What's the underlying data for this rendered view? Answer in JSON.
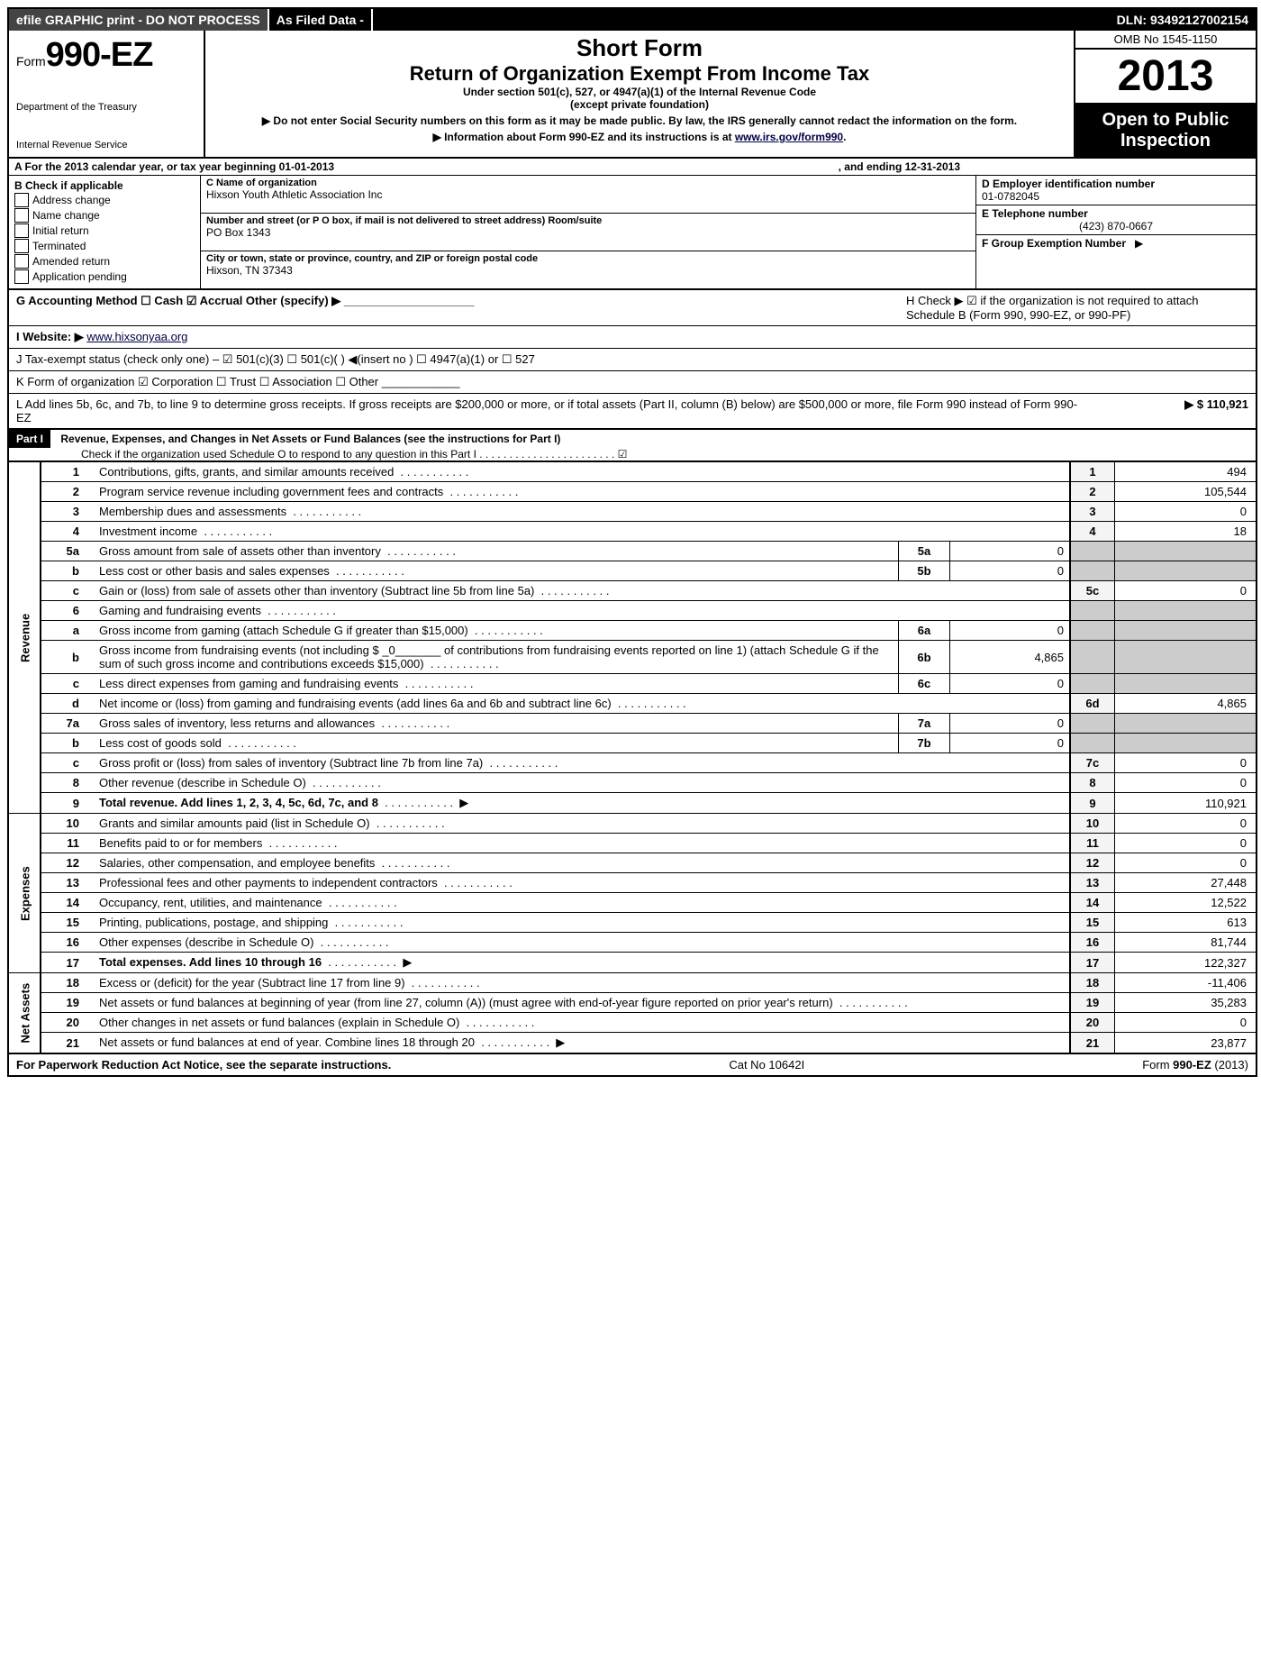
{
  "topbar": {
    "left": "efile GRAPHIC print - DO NOT PROCESS",
    "mid": "As Filed Data -",
    "right": "DLN: 93492127002154"
  },
  "header": {
    "form_prefix": "Form",
    "form_no": "990-EZ",
    "dept1": "Department of the Treasury",
    "dept2": "Internal Revenue Service",
    "short": "Short Form",
    "title": "Return of Organization Exempt From Income Tax",
    "sub1": "Under section 501(c), 527, or 4947(a)(1) of the Internal Revenue Code",
    "sub2": "(except private foundation)",
    "note1": "▶ Do not enter Social Security numbers on this form as it may be made public. By law, the IRS generally cannot redact the information on the form.",
    "note2": "▶ Information about Form 990-EZ and its instructions is at ",
    "note2_link": "www.irs.gov/form990",
    "omb": "OMB No 1545-1150",
    "year": "2013",
    "open1": "Open to Public",
    "open2": "Inspection"
  },
  "A": {
    "pre": "A  For the 2013 calendar year, or tax year beginning 01-01-2013",
    "post": ", and ending 12-31-2013"
  },
  "B": {
    "title": "B  Check if applicable",
    "items": [
      "Address change",
      "Name change",
      "Initial return",
      "Terminated",
      "Amended return",
      "Application pending"
    ]
  },
  "C": {
    "lbl": "C Name of organization",
    "name": "Hixson Youth Athletic Association Inc",
    "addr_lbl": "Number and street (or P O box, if mail is not delivered to street address) Room/suite",
    "addr": "PO Box 1343",
    "city_lbl": "City or town, state or province, country, and ZIP or foreign postal code",
    "city": "Hixson, TN  37343"
  },
  "D": {
    "lbl": "D Employer identification number",
    "val": "01-0782045"
  },
  "E": {
    "lbl": "E Telephone number",
    "val": "(423) 870-0667"
  },
  "F": {
    "lbl": "F Group Exemption Number",
    "arrow": "▶"
  },
  "G": {
    "text": "G Accounting Method     ☐ Cash   ☑ Accrual   Other (specify) ▶ ____________________"
  },
  "H": {
    "text": "H  Check ▶ ☑ if the organization is not required to attach Schedule B (Form 990, 990-EZ, or 990-PF)"
  },
  "I": {
    "pre": "I Website: ▶ ",
    "link": "www.hixsonyaa.org"
  },
  "J": {
    "text": "J Tax-exempt status (check only one) – ☑ 501(c)(3)   ☐ 501(c)(  ) ◀(insert no )  ☐ 4947(a)(1) or  ☐ 527"
  },
  "K": {
    "text": "K Form of organization   ☑ Corporation   ☐ Trust   ☐ Association   ☐ Other ____________"
  },
  "L": {
    "text": "L Add lines 5b, 6c, and 7b, to line 9 to determine gross receipts. If gross receipts are $200,000 or more, or if total assets (Part II, column (B) below) are $500,000 or more, file Form 990 instead of Form 990-EZ",
    "val": "▶ $ 110,921"
  },
  "part1": {
    "bar": "Part I",
    "title": "Revenue, Expenses, and Changes in Net Assets or Fund Balances (see the instructions for Part I)",
    "check": "Check if the organization used Schedule O to respond to any question in this Part I . . . . . . . . . . . . . . . . . . . . . . . ☑"
  },
  "side": {
    "rev": "Revenue",
    "exp": "Expenses",
    "net": "Net Assets"
  },
  "lines": [
    {
      "n": "1",
      "t": "Contributions, gifts, grants, and similar amounts received",
      "ln": "1",
      "v": "494"
    },
    {
      "n": "2",
      "t": "Program service revenue including government fees and contracts",
      "ln": "2",
      "v": "105,544"
    },
    {
      "n": "3",
      "t": "Membership dues and assessments",
      "ln": "3",
      "v": "0"
    },
    {
      "n": "4",
      "t": "Investment income",
      "ln": "4",
      "v": "18"
    },
    {
      "n": "5a",
      "t": "Gross amount from sale of assets other than inventory",
      "ib": "5a",
      "iv": "0"
    },
    {
      "n": "b",
      "t": "Less cost or other basis and sales expenses",
      "ib": "5b",
      "iv": "0"
    },
    {
      "n": "c",
      "t": "Gain or (loss) from sale of assets other than inventory (Subtract line 5b from line 5a)",
      "ln": "5c",
      "v": "0"
    },
    {
      "n": "6",
      "t": "Gaming and fundraising events",
      "shade": true
    },
    {
      "n": "a",
      "t": "Gross income from gaming (attach Schedule G if greater than $15,000)",
      "ib": "6a",
      "iv": "0"
    },
    {
      "n": "b",
      "t": "Gross income from fundraising events (not including $ _0_______ of contributions from fundraising events reported on line 1) (attach Schedule G if the sum of such gross income and contributions exceeds $15,000)",
      "ib": "6b",
      "iv": "4,865"
    },
    {
      "n": "c",
      "t": "Less  direct expenses from gaming and fundraising events",
      "ib": "6c",
      "iv": "0"
    },
    {
      "n": "d",
      "t": "Net income or (loss) from gaming and fundraising events (add lines 6a and 6b and subtract line 6c)",
      "ln": "6d",
      "v": "4,865"
    },
    {
      "n": "7a",
      "t": "Gross sales of inventory, less returns and allowances",
      "ib": "7a",
      "iv": "0"
    },
    {
      "n": "b",
      "t": "Less  cost of goods sold",
      "ib": "7b",
      "iv": "0"
    },
    {
      "n": "c",
      "t": "Gross profit or (loss) from sales of inventory (Subtract line 7b from line 7a)",
      "ln": "7c",
      "v": "0"
    },
    {
      "n": "8",
      "t": "Other revenue (describe in Schedule O)",
      "ln": "8",
      "v": "0"
    },
    {
      "n": "9",
      "t": "Total revenue. Add lines 1, 2, 3, 4, 5c, 6d, 7c, and 8",
      "ln": "9",
      "v": "110,921",
      "bold": true,
      "arrow": true
    }
  ],
  "exp_lines": [
    {
      "n": "10",
      "t": "Grants and similar amounts paid (list in Schedule O)",
      "ln": "10",
      "v": "0"
    },
    {
      "n": "11",
      "t": "Benefits paid to or for members",
      "ln": "11",
      "v": "0"
    },
    {
      "n": "12",
      "t": "Salaries, other compensation, and employee benefits",
      "ln": "12",
      "v": "0"
    },
    {
      "n": "13",
      "t": "Professional fees and other payments to independent contractors",
      "ln": "13",
      "v": "27,448"
    },
    {
      "n": "14",
      "t": "Occupancy, rent, utilities, and maintenance",
      "ln": "14",
      "v": "12,522"
    },
    {
      "n": "15",
      "t": "Printing, publications, postage, and shipping",
      "ln": "15",
      "v": "613"
    },
    {
      "n": "16",
      "t": "Other expenses (describe in Schedule O)",
      "ln": "16",
      "v": "81,744"
    },
    {
      "n": "17",
      "t": "Total expenses. Add lines 10 through 16",
      "ln": "17",
      "v": "122,327",
      "bold": true,
      "arrow": true
    }
  ],
  "net_lines": [
    {
      "n": "18",
      "t": "Excess or (deficit) for the year (Subtract line 17 from line 9)",
      "ln": "18",
      "v": "-11,406"
    },
    {
      "n": "19",
      "t": "Net assets or fund balances at beginning of year (from line 27, column (A)) (must agree with end-of-year figure reported on prior year's return)",
      "ln": "19",
      "v": "35,283"
    },
    {
      "n": "20",
      "t": "Other changes in net assets or fund balances (explain in Schedule O)",
      "ln": "20",
      "v": "0"
    },
    {
      "n": "21",
      "t": "Net assets or fund balances at end of year. Combine lines 18 through 20",
      "ln": "21",
      "v": "23,877",
      "arrow": true
    }
  ],
  "footer": {
    "left": "For Paperwork Reduction Act Notice, see the separate instructions.",
    "mid": "Cat No 10642I",
    "right": "Form 990-EZ (2013)"
  }
}
